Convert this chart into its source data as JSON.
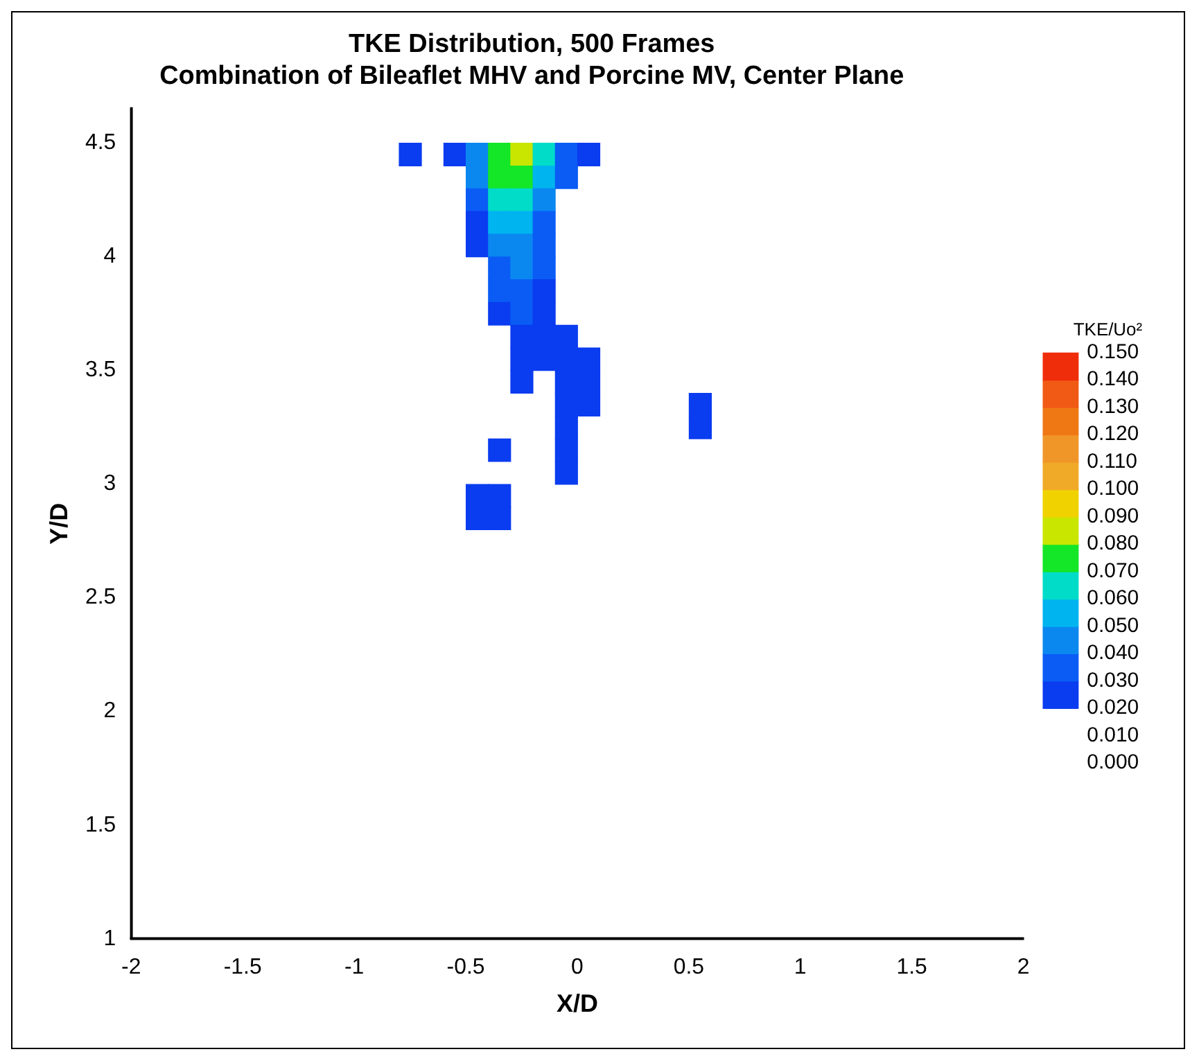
{
  "chart_data": {
    "type": "heatmap",
    "title": "TKE Distribution, 500 Frames",
    "subtitle": "Combination of Bileaflet MHV and Porcine MV, Center Plane",
    "xlabel": "X/D",
    "ylabel": "Y/D",
    "clabel": "TKE/Uo²",
    "x": [
      -0.75,
      -0.65,
      -0.55,
      -0.45,
      -0.35,
      -0.25,
      -0.15,
      -0.05,
      0.05,
      0.15,
      0.45,
      0.55
    ],
    "y": [
      4.45,
      4.35,
      4.25,
      4.15,
      4.05,
      3.95,
      3.85,
      3.75,
      3.65,
      3.55,
      3.45,
      3.35,
      3.25,
      3.15,
      3.05,
      2.95,
      2.85
    ],
    "cells": [
      [
        0.025,
        null,
        0.025,
        0.04,
        0.07,
        0.085,
        0.06,
        0.035,
        0.025,
        null,
        null,
        null
      ],
      [
        null,
        null,
        null,
        0.04,
        0.07,
        0.075,
        0.05,
        0.03,
        null,
        null,
        null,
        null
      ],
      [
        null,
        null,
        null,
        0.03,
        0.06,
        0.065,
        0.04,
        null,
        null,
        null,
        null,
        null
      ],
      [
        null,
        null,
        null,
        0.025,
        0.05,
        0.055,
        0.035,
        null,
        null,
        null,
        null,
        null
      ],
      [
        null,
        null,
        null,
        0.025,
        0.045,
        0.045,
        0.03,
        null,
        null,
        null,
        null,
        null
      ],
      [
        null,
        null,
        null,
        null,
        0.035,
        0.04,
        0.03,
        null,
        null,
        null,
        null,
        null
      ],
      [
        null,
        null,
        null,
        null,
        0.03,
        0.035,
        0.025,
        null,
        null,
        null,
        null,
        null
      ],
      [
        null,
        null,
        null,
        null,
        0.025,
        0.03,
        0.025,
        null,
        null,
        null,
        null,
        null
      ],
      [
        null,
        null,
        null,
        null,
        null,
        0.025,
        0.025,
        0.025,
        null,
        null,
        null,
        null
      ],
      [
        null,
        null,
        null,
        null,
        null,
        0.025,
        0.025,
        0.025,
        0.025,
        null,
        null,
        null
      ],
      [
        null,
        null,
        null,
        null,
        null,
        0.025,
        null,
        0.025,
        0.025,
        null,
        null,
        null
      ],
      [
        null,
        null,
        null,
        null,
        null,
        null,
        null,
        0.025,
        0.025,
        null,
        null,
        0.025
      ],
      [
        null,
        null,
        null,
        null,
        null,
        null,
        null,
        0.025,
        null,
        null,
        null,
        0.025
      ],
      [
        null,
        null,
        null,
        null,
        0.025,
        null,
        null,
        0.025,
        null,
        null,
        null,
        null
      ],
      [
        null,
        null,
        null,
        null,
        null,
        null,
        null,
        0.02,
        null,
        null,
        null,
        null
      ],
      [
        null,
        null,
        null,
        0.025,
        0.025,
        null,
        null,
        null,
        null,
        null,
        null,
        null
      ],
      [
        null,
        null,
        null,
        0.025,
        0.025,
        null,
        null,
        null,
        null,
        null,
        null,
        null
      ]
    ],
    "xlim": [
      -2,
      2
    ],
    "xticks": [
      -2,
      -1.5,
      -1,
      -0.5,
      0,
      0.5,
      1,
      1.5,
      2
    ],
    "ylim": [
      1,
      4.65
    ],
    "yticks": [
      1,
      1.5,
      2,
      2.5,
      3,
      3.5,
      4,
      4.5
    ],
    "clim": [
      0,
      0.15
    ],
    "cticks": [
      {
        "value": 0,
        "label": "0.000"
      },
      {
        "value": 0.01,
        "label": "0.010"
      },
      {
        "value": 0.02,
        "label": "0.020"
      },
      {
        "value": 0.03,
        "label": "0.030"
      },
      {
        "value": 0.04,
        "label": "0.040"
      },
      {
        "value": 0.05,
        "label": "0.050"
      },
      {
        "value": 0.06,
        "label": "0.060"
      },
      {
        "value": 0.07,
        "label": "0.070"
      },
      {
        "value": 0.08,
        "label": "0.080"
      },
      {
        "value": 0.09,
        "label": "0.090"
      },
      {
        "value": 0.1,
        "label": "0.100"
      },
      {
        "value": 0.11,
        "label": "0.110"
      },
      {
        "value": 0.12,
        "label": "0.120"
      },
      {
        "value": 0.13,
        "label": "0.130"
      },
      {
        "value": 0.14,
        "label": "0.140"
      },
      {
        "value": 0.15,
        "label": "0.150"
      }
    ],
    "colors": [
      "#ffffff",
      "#ffffff",
      "#0a3cf0",
      "#0a5cf5",
      "#0a88f0",
      "#00b4f0",
      "#00dcc8",
      "#14e628",
      "#c8e600",
      "#f0d200",
      "#f0aa28",
      "#f09628",
      "#f07814",
      "#f05a14",
      "#f02d0a"
    ]
  }
}
